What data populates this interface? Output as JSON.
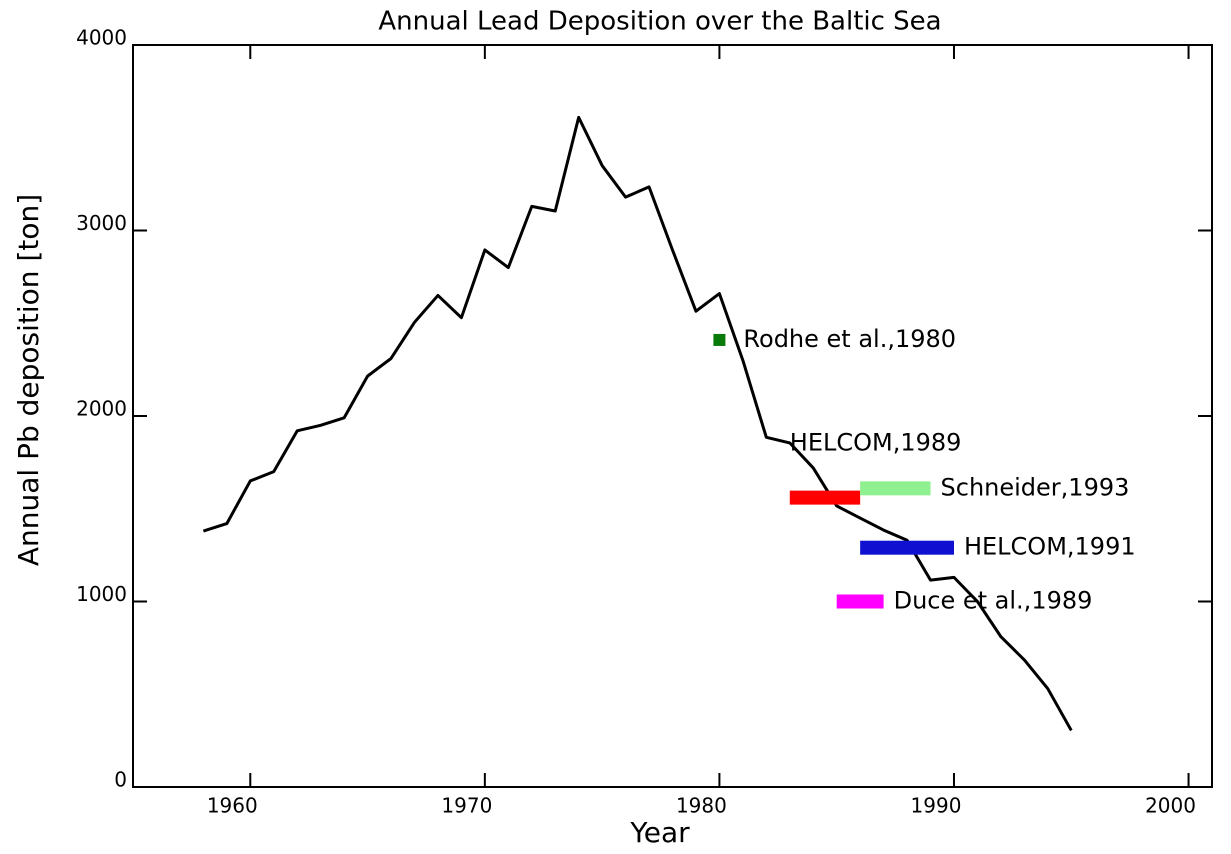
{
  "chart_data": {
    "type": "line",
    "title": "Annual Lead Deposition over the Baltic Sea",
    "xlabel": "Year",
    "ylabel": "Annual Pb deposition [ton]",
    "xlim": [
      1955,
      2001
    ],
    "ylim": [
      0,
      4000
    ],
    "xticks": [
      1960,
      1970,
      1980,
      1990,
      2000
    ],
    "yticks": [
      0,
      1000,
      2000,
      3000,
      4000
    ],
    "x": [
      1958,
      1959,
      1960,
      1961,
      1962,
      1963,
      1964,
      1965,
      1966,
      1967,
      1968,
      1969,
      1970,
      1971,
      1972,
      1973,
      1974,
      1975,
      1976,
      1977,
      1978,
      1979,
      1980,
      1981,
      1982,
      1983,
      1984,
      1985,
      1986,
      1987,
      1988,
      1989,
      1990,
      1991,
      1992,
      1993,
      1994,
      1995
    ],
    "series": [
      {
        "color": "#000000",
        "values": [
          1380,
          1420,
          1650,
          1700,
          1920,
          1950,
          1990,
          2215,
          2310,
          2505,
          2650,
          2530,
          2895,
          2800,
          3130,
          3105,
          3610,
          3350,
          3180,
          3235,
          2895,
          2565,
          2660,
          2300,
          1885,
          1855,
          1720,
          1515,
          1450,
          1385,
          1330,
          1115,
          1130,
          1000,
          810,
          685,
          530,
          305
        ]
      }
    ],
    "estimates": [
      {
        "name": "Rodhe et al.,1980",
        "color": "#0a7a0a",
        "x": [
          1980,
          1980
        ],
        "value": 2410
      },
      {
        "name": "HELCOM,1989",
        "color": "#ff0000",
        "x": [
          1983,
          1986
        ],
        "value": 1560
      },
      {
        "name": "Schneider,1993",
        "color": "#8ef08e",
        "x": [
          1986,
          1989
        ],
        "value": 1610
      },
      {
        "name": "HELCOM,1991",
        "color": "#1010d0",
        "x": [
          1986,
          1990
        ],
        "value": 1290
      },
      {
        "name": "Duce et al.,1989",
        "color": "#ff00ff",
        "x": [
          1985,
          1987
        ],
        "value": 1000
      }
    ]
  }
}
